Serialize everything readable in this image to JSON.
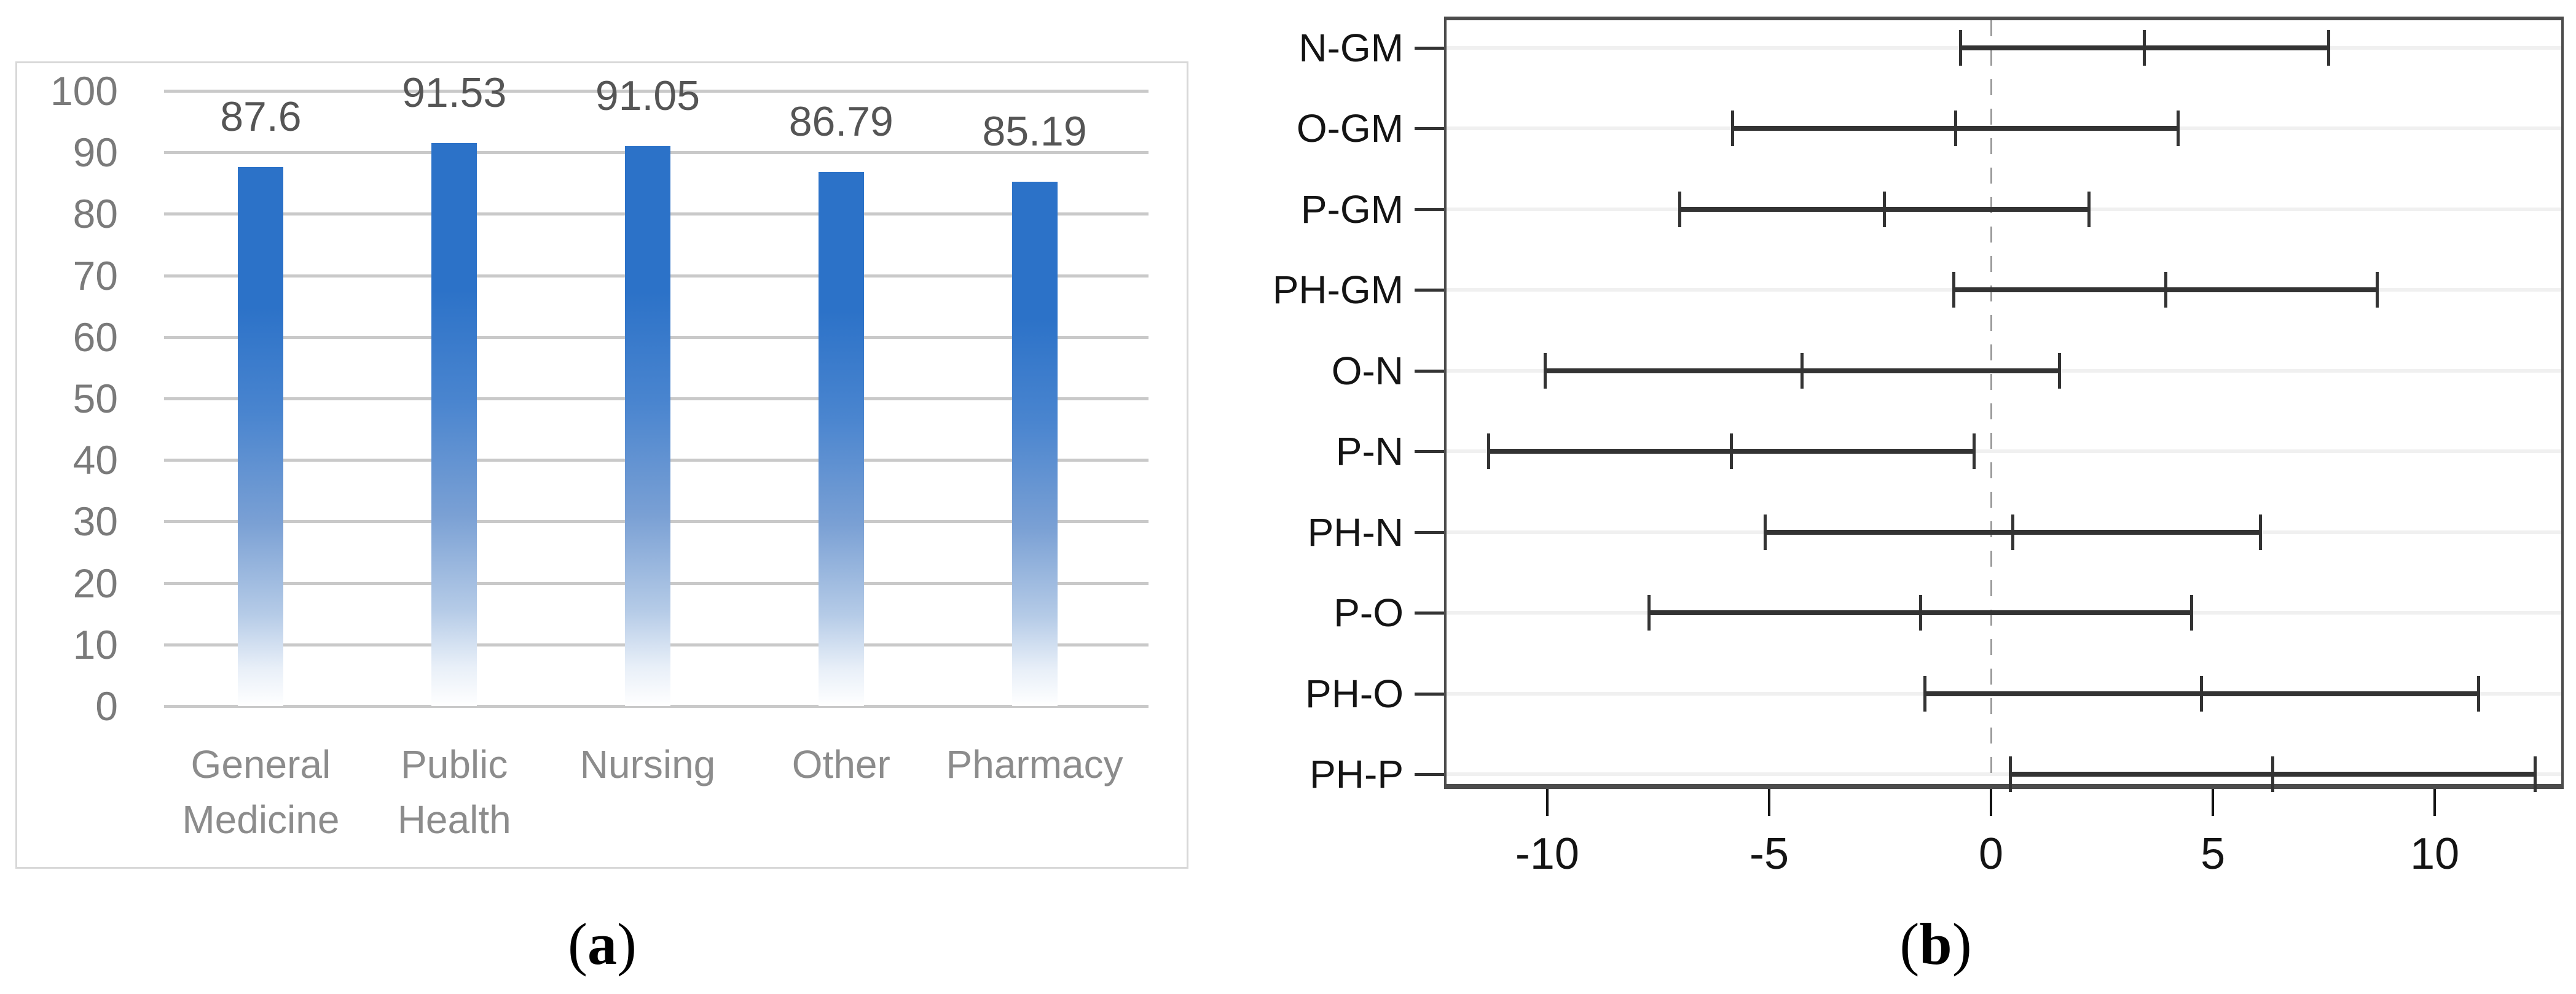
{
  "captions": {
    "a": {
      "open": "(",
      "letter": "a",
      "close": ")"
    },
    "b": {
      "open": "(",
      "letter": "b",
      "close": ")"
    }
  },
  "palette": {
    "bar_blue_top": "#2C72C8",
    "bar_blue_mid": "#7AA0D4",
    "bar_blue_light": "#B5CBE7",
    "bar_fade_bottom": "#FFFFFF",
    "a_gridline_gray": "#C9C9C9",
    "a_axis_label_gray": "#7A7A7A",
    "a_value_label_gray": "#555555",
    "a_category_label_gray": "#8C8C8C",
    "a_box_border": "#D8D8D8",
    "b_box_border": "#4C4C4C",
    "b_interval_dark": "#333333",
    "b_row_gridline": "#F0F0F0",
    "b_zero_dash_gray": "#9C9C9C",
    "b_text_color": "#141414"
  },
  "chart_data": [
    {
      "type": "bar",
      "panel": "a",
      "title": "",
      "xlabel": "",
      "ylabel": "",
      "categories": [
        "General Medicine",
        "Public Health",
        "Nursing",
        "Other",
        "Pharmacy"
      ],
      "category_label_lines": [
        [
          "General",
          "Medicine"
        ],
        [
          "Public",
          "Health"
        ],
        [
          "Nursing"
        ],
        [
          "Other"
        ],
        [
          "Pharmacy"
        ]
      ],
      "values": [
        87.6,
        91.53,
        91.05,
        86.79,
        85.19
      ],
      "data_labels": [
        "87.6",
        "91.53",
        "91.05",
        "86.79",
        "85.19"
      ],
      "ylim": [
        0,
        100
      ],
      "yticks": [
        0,
        10,
        20,
        30,
        40,
        50,
        60,
        70,
        80,
        90,
        100
      ],
      "grid": true,
      "legend": "none",
      "bar_style": "vertical gradient, solid blue fading to white at base"
    },
    {
      "type": "interval",
      "panel": "b",
      "title": "",
      "xlabel": "",
      "ylabel": "",
      "description": "Tukey HSD style pairwise mean-difference 95% confidence intervals",
      "rows": [
        {
          "label": "N-GM",
          "lower": -0.7,
          "center": 3.45,
          "upper": 7.6
        },
        {
          "label": "O-GM",
          "lower": -5.83,
          "center": -0.81,
          "upper": 4.21
        },
        {
          "label": "P-GM",
          "lower": -7.02,
          "center": -2.41,
          "upper": 2.2
        },
        {
          "label": "PH-GM",
          "lower": -0.84,
          "center": 3.93,
          "upper": 8.7
        },
        {
          "label": "O-N",
          "lower": -10.05,
          "center": -4.26,
          "upper": 1.53
        },
        {
          "label": "P-N",
          "lower": -11.33,
          "center": -5.86,
          "upper": -0.39
        },
        {
          "label": "PH-N",
          "lower": -5.1,
          "center": 0.48,
          "upper": 6.06
        },
        {
          "label": "P-O",
          "lower": -7.72,
          "center": -1.6,
          "upper": 4.52
        },
        {
          "label": "PH-O",
          "lower": -1.5,
          "center": 4.74,
          "upper": 10.98
        },
        {
          "label": "PH-P",
          "lower": 0.43,
          "center": 6.34,
          "upper": 12.25
        }
      ],
      "xticks": [
        -10,
        -5,
        0,
        5,
        10
      ],
      "xtick_labels": [
        "-10",
        "-5",
        "0",
        "5",
        "10"
      ],
      "xlim": [
        -12.27,
        12.85
      ],
      "reference_line_x": 0,
      "grid": true,
      "legend": "none"
    }
  ]
}
